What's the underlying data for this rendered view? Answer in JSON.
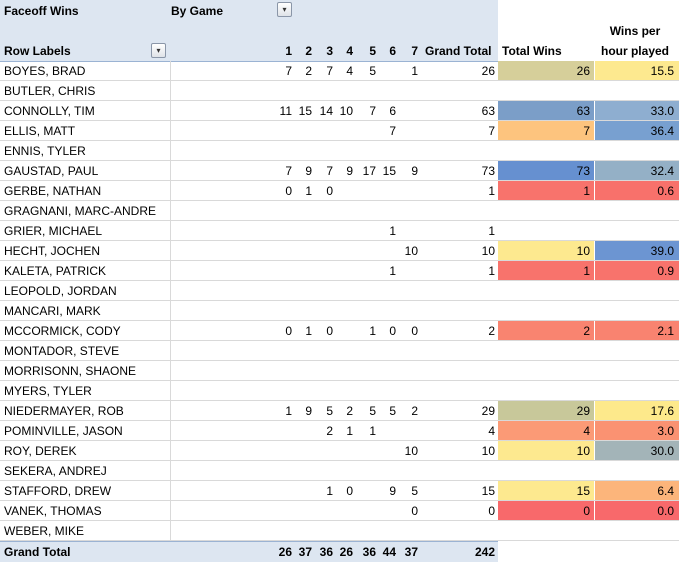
{
  "pivot": {
    "title": "Faceoff Wins",
    "filter_label": "By Game",
    "row_labels_header": "Row Labels",
    "games": [
      "1",
      "2",
      "3",
      "4",
      "5",
      "6",
      "7"
    ],
    "grand_total_header": "Grand Total",
    "total_wins_header": "Total Wins",
    "wins_per_hour_header_line1": "Wins per",
    "wins_per_hour_header_line2": "hour played",
    "dropdown_glyph": "▾",
    "rows": [
      {
        "name": "BOYES, BRAD",
        "g": [
          "7",
          "2",
          "7",
          "4",
          "5",
          "",
          "1"
        ],
        "gt": "26",
        "tw": "26",
        "tw_color": "#d6cf9a",
        "wph": "15.5",
        "wph_color": "#fde98f"
      },
      {
        "name": "BUTLER, CHRIS",
        "g": [
          "",
          "",
          "",
          "",
          "",
          "",
          ""
        ],
        "gt": "",
        "tw": "",
        "tw_color": "",
        "wph": "",
        "wph_color": ""
      },
      {
        "name": "CONNOLLY, TIM",
        "g": [
          "11",
          "15",
          "14",
          "10",
          "7",
          "6",
          ""
        ],
        "gt": "63",
        "tw": "63",
        "tw_color": "#7b9ec8",
        "wph": "33.0",
        "wph_color": "#8eaed0"
      },
      {
        "name": "ELLIS, MATT",
        "g": [
          "",
          "",
          "",
          "",
          "",
          "7",
          ""
        ],
        "gt": "7",
        "tw": "7",
        "tw_color": "#fdc47e",
        "wph": "36.4",
        "wph_color": "#78a0d0"
      },
      {
        "name": "ENNIS, TYLER",
        "g": [
          "",
          "",
          "",
          "",
          "",
          "",
          ""
        ],
        "gt": "",
        "tw": "",
        "tw_color": "",
        "wph": "",
        "wph_color": ""
      },
      {
        "name": "GAUSTAD, PAUL",
        "g": [
          "7",
          "9",
          "7",
          "9",
          "17",
          "15",
          "9"
        ],
        "gt": "73",
        "tw": "73",
        "tw_color": "#6690d0",
        "wph": "32.4",
        "wph_color": "#94b0c6"
      },
      {
        "name": "GERBE, NATHAN",
        "g": [
          "0",
          "1",
          "0",
          "",
          "",
          "",
          ""
        ],
        "gt": "1",
        "tw": "1",
        "tw_color": "#f8736c",
        "wph": "0.6",
        "wph_color": "#f8716b"
      },
      {
        "name": "GRAGNANI, MARC-ANDRE",
        "g": [
          "",
          "",
          "",
          "",
          "",
          "",
          ""
        ],
        "gt": "",
        "tw": "",
        "tw_color": "",
        "wph": "",
        "wph_color": ""
      },
      {
        "name": "GRIER, MICHAEL",
        "g": [
          "",
          "",
          "",
          "",
          "",
          "1",
          ""
        ],
        "gt": "1",
        "tw": "",
        "tw_color": "",
        "wph": "",
        "wph_color": ""
      },
      {
        "name": "HECHT, JOCHEN",
        "g": [
          "",
          "",
          "",
          "",
          "",
          "",
          "10"
        ],
        "gt": "10",
        "tw": "10",
        "tw_color": "#fde98f",
        "wph": "39.0",
        "wph_color": "#6c95d2"
      },
      {
        "name": "KALETA, PATRICK",
        "g": [
          "",
          "",
          "",
          "",
          "",
          "1",
          ""
        ],
        "gt": "1",
        "tw": "1",
        "tw_color": "#f8736c",
        "wph": "0.9",
        "wph_color": "#f8736c"
      },
      {
        "name": "LEOPOLD, JORDAN",
        "g": [
          "",
          "",
          "",
          "",
          "",
          "",
          ""
        ],
        "gt": "",
        "tw": "",
        "tw_color": "",
        "wph": "",
        "wph_color": ""
      },
      {
        "name": "MANCARI, MARK",
        "g": [
          "",
          "",
          "",
          "",
          "",
          "",
          ""
        ],
        "gt": "",
        "tw": "",
        "tw_color": "",
        "wph": "",
        "wph_color": ""
      },
      {
        "name": "MCCORMICK, CODY",
        "g": [
          "0",
          "1",
          "0",
          "",
          "1",
          "0",
          "0"
        ],
        "gt": "2",
        "tw": "2",
        "tw_color": "#f98470",
        "wph": "2.1",
        "wph_color": "#f98370"
      },
      {
        "name": "MONTADOR, STEVE",
        "g": [
          "",
          "",
          "",
          "",
          "",
          "",
          ""
        ],
        "gt": "",
        "tw": "",
        "tw_color": "",
        "wph": "",
        "wph_color": ""
      },
      {
        "name": "MORRISONN, SHAONE",
        "g": [
          "",
          "",
          "",
          "",
          "",
          "",
          ""
        ],
        "gt": "",
        "tw": "",
        "tw_color": "",
        "wph": "",
        "wph_color": ""
      },
      {
        "name": "MYERS, TYLER",
        "g": [
          "",
          "",
          "",
          "",
          "",
          "",
          ""
        ],
        "gt": "",
        "tw": "",
        "tw_color": "",
        "wph": "",
        "wph_color": ""
      },
      {
        "name": "NIEDERMAYER, ROB",
        "g": [
          "1",
          "9",
          "5",
          "2",
          "5",
          "5",
          "2"
        ],
        "gt": "29",
        "tw": "29",
        "tw_color": "#c8c89a",
        "wph": "17.6",
        "wph_color": "#fde98b"
      },
      {
        "name": "POMINVILLE, JASON",
        "g": [
          "",
          "",
          "2",
          "1",
          "1",
          "",
          ""
        ],
        "gt": "4",
        "tw": "4",
        "tw_color": "#fb9a76",
        "wph": "3.0",
        "wph_color": "#fa9272"
      },
      {
        "name": "ROY, DEREK",
        "g": [
          "",
          "",
          "",
          "",
          "",
          "",
          "10"
        ],
        "gt": "10",
        "tw": "10",
        "tw_color": "#fde98f",
        "wph": "30.0",
        "wph_color": "#a3b4b8"
      },
      {
        "name": "SEKERA, ANDREJ",
        "g": [
          "",
          "",
          "",
          "",
          "",
          "",
          ""
        ],
        "gt": "",
        "tw": "",
        "tw_color": "",
        "wph": "",
        "wph_color": ""
      },
      {
        "name": "STAFFORD, DREW",
        "g": [
          "",
          "",
          "1",
          "0",
          "",
          "9",
          "5"
        ],
        "gt": "15",
        "tw": "15",
        "tw_color": "#fde98f",
        "wph": "6.4",
        "wph_color": "#fcb57b"
      },
      {
        "name": "VANEK, THOMAS",
        "g": [
          "",
          "",
          "",
          "",
          "",
          "",
          "0"
        ],
        "gt": "0",
        "tw": "0",
        "tw_color": "#f8696b",
        "wph": "0.0",
        "wph_color": "#f8696b"
      },
      {
        "name": "WEBER, MIKE",
        "g": [
          "",
          "",
          "",
          "",
          "",
          "",
          ""
        ],
        "gt": "",
        "tw": "",
        "tw_color": "",
        "wph": "",
        "wph_color": ""
      }
    ],
    "grand_total": {
      "label": "Grand Total",
      "g": [
        "26",
        "37",
        "36",
        "26",
        "36",
        "44",
        "37"
      ],
      "gt": "242"
    }
  }
}
